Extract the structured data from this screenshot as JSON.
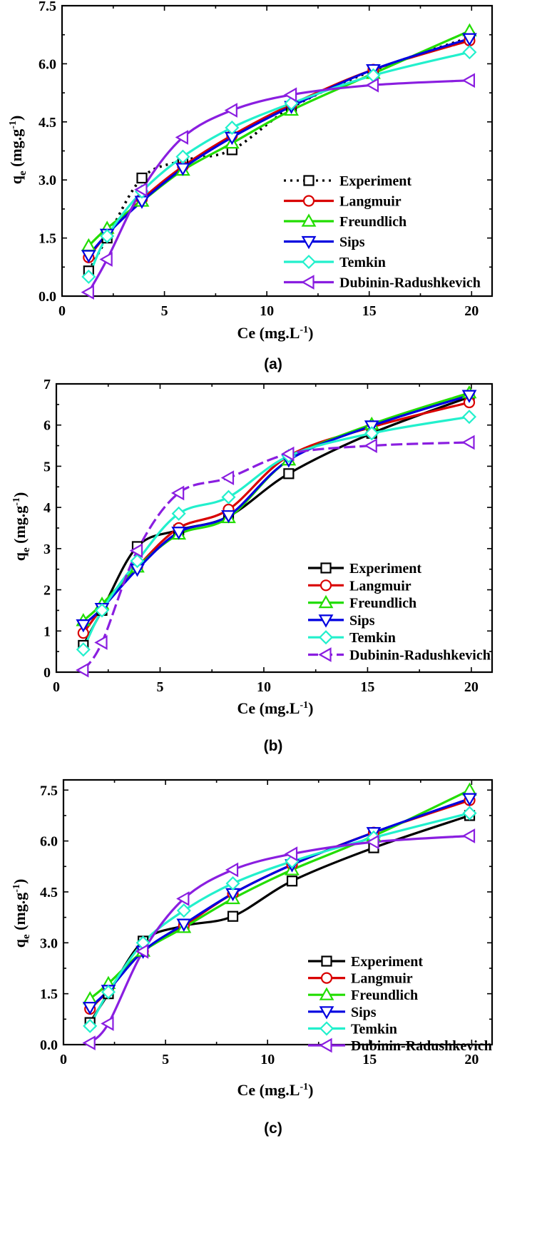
{
  "colors": {
    "Experiment": "#000000",
    "Langmuir": "#d90000",
    "Freundlich": "#22dd00",
    "Sips": "#0000e0",
    "Temkin": "#22f0cc",
    "Dubinin-Radushkevich": "#8a1ee0"
  },
  "chart_data": [
    {
      "type": "line",
      "panel_label": "(a)",
      "xlabel": "Ce (mg.L",
      "xlabel_sup": "-1",
      "xlabel_tail": ")",
      "ylabel": "q",
      "ylabel_sub": "e",
      "ylabel_tail": " (mg.g",
      "ylabel_sup": "-1",
      "ylabel_end": ")",
      "xlim": [
        0,
        21
      ],
      "ylim": [
        0,
        7.5
      ],
      "xticks": [
        0,
        5,
        10,
        15,
        20
      ],
      "yticks": [
        0.0,
        1.5,
        3.0,
        4.5,
        6.0,
        7.5
      ],
      "yticklabels": [
        "0.0",
        "1.5",
        "3.0",
        "4.5",
        "6.0",
        "7.5"
      ],
      "legend_position": "bottom-right",
      "x": [
        1.3,
        2.2,
        3.9,
        5.9,
        8.3,
        11.2,
        15.2,
        19.9
      ],
      "series": [
        {
          "name": "Experiment",
          "values": [
            0.65,
            1.5,
            3.05,
            3.5,
            3.78,
            4.87,
            5.83,
            6.68
          ],
          "dashed": true,
          "marker": "square"
        },
        {
          "name": "Langmuir",
          "values": [
            1.0,
            1.6,
            2.5,
            3.35,
            4.15,
            4.95,
            5.85,
            6.6
          ],
          "marker": "circle"
        },
        {
          "name": "Freundlich",
          "values": [
            1.3,
            1.75,
            2.45,
            3.25,
            3.95,
            4.8,
            5.75,
            6.85
          ],
          "marker": "triangle-up"
        },
        {
          "name": "Sips",
          "values": [
            1.05,
            1.6,
            2.45,
            3.3,
            4.1,
            4.9,
            5.85,
            6.65
          ],
          "marker": "triangle-down"
        },
        {
          "name": "Temkin",
          "values": [
            0.5,
            1.55,
            2.7,
            3.6,
            4.35,
            4.98,
            5.7,
            6.3
          ],
          "marker": "diamond"
        },
        {
          "name": "Dubinin-Radushkevich",
          "values": [
            0.1,
            0.95,
            2.75,
            4.1,
            4.8,
            5.2,
            5.45,
            5.57
          ],
          "marker": "triangle-left"
        }
      ]
    },
    {
      "type": "line",
      "panel_label": "(b)",
      "xlabel": "Ce (mg.L",
      "xlabel_sup": "-1",
      "xlabel_tail": ")",
      "ylabel": "q",
      "ylabel_sub": "e",
      "ylabel_tail": " (mg.g",
      "ylabel_sup": "-1",
      "ylabel_end": ")",
      "xlim": [
        0,
        21
      ],
      "ylim": [
        0,
        7
      ],
      "xticks": [
        0,
        5,
        10,
        15,
        20
      ],
      "yticks": [
        0,
        1,
        2,
        3,
        4,
        5,
        6,
        7
      ],
      "yticklabels": [
        "0",
        "1",
        "2",
        "3",
        "4",
        "5",
        "6",
        "7"
      ],
      "legend_position": "bottom-right",
      "x": [
        1.3,
        2.2,
        3.9,
        5.9,
        8.3,
        11.2,
        15.2,
        19.9
      ],
      "series": [
        {
          "name": "Experiment",
          "values": [
            0.65,
            1.5,
            3.05,
            3.45,
            3.78,
            4.82,
            5.8,
            6.68
          ],
          "marker": "square"
        },
        {
          "name": "Langmuir",
          "values": [
            0.95,
            1.55,
            2.55,
            3.5,
            3.95,
            5.25,
            5.95,
            6.55
          ],
          "marker": "circle"
        },
        {
          "name": "Freundlich",
          "values": [
            1.25,
            1.65,
            2.55,
            3.35,
            3.75,
            5.15,
            6.02,
            6.78
          ],
          "marker": "triangle-up"
        },
        {
          "name": "Sips",
          "values": [
            1.15,
            1.55,
            2.5,
            3.4,
            3.8,
            5.15,
            5.98,
            6.72
          ],
          "marker": "triangle-down"
        },
        {
          "name": "Temkin",
          "values": [
            0.55,
            1.5,
            2.7,
            3.85,
            4.25,
            5.25,
            5.8,
            6.2
          ],
          "marker": "diamond"
        },
        {
          "name": "Dubinin-Radushkevich",
          "values": [
            0.05,
            0.72,
            2.95,
            4.35,
            4.72,
            5.3,
            5.5,
            5.58
          ],
          "marker": "triangle-left",
          "dashed": true
        }
      ]
    },
    {
      "type": "line",
      "panel_label": "(c)",
      "xlabel": "Ce (mg.L",
      "xlabel_sup": "-1",
      "xlabel_tail": ")",
      "ylabel": "q",
      "ylabel_sub": "e",
      "ylabel_tail": " (mg.g",
      "ylabel_sup": "-1",
      "ylabel_end": ")",
      "xlim": [
        0,
        21
      ],
      "ylim": [
        0,
        7.8
      ],
      "xticks": [
        0,
        5,
        10,
        15,
        20
      ],
      "yticks": [
        0.0,
        1.5,
        3.0,
        4.5,
        6.0,
        7.5
      ],
      "yticklabels": [
        "0.0",
        "1.5",
        "3.0",
        "4.5",
        "6.0",
        "7.5"
      ],
      "legend_position": "bottom-right",
      "x": [
        1.3,
        2.2,
        3.9,
        5.9,
        8.3,
        11.2,
        15.2,
        19.9
      ],
      "series": [
        {
          "name": "Experiment",
          "values": [
            0.65,
            1.5,
            3.05,
            3.5,
            3.78,
            4.82,
            5.8,
            6.75
          ],
          "marker": "square"
        },
        {
          "name": "Langmuir",
          "values": [
            1.05,
            1.6,
            2.75,
            3.5,
            4.45,
            5.3,
            6.25,
            7.2
          ],
          "marker": "circle"
        },
        {
          "name": "Freundlich",
          "values": [
            1.35,
            1.8,
            2.75,
            3.45,
            4.3,
            5.15,
            6.15,
            7.5
          ],
          "marker": "triangle-up"
        },
        {
          "name": "Sips",
          "values": [
            1.1,
            1.6,
            2.75,
            3.55,
            4.45,
            5.3,
            6.25,
            7.25
          ],
          "marker": "triangle-down"
        },
        {
          "name": "Temkin",
          "values": [
            0.55,
            1.55,
            3.0,
            3.95,
            4.75,
            5.4,
            6.1,
            6.82
          ],
          "marker": "diamond"
        },
        {
          "name": "Dubinin-Radushkevich",
          "values": [
            0.05,
            0.62,
            2.75,
            4.3,
            5.15,
            5.62,
            5.97,
            6.15
          ],
          "marker": "triangle-left"
        }
      ]
    }
  ]
}
